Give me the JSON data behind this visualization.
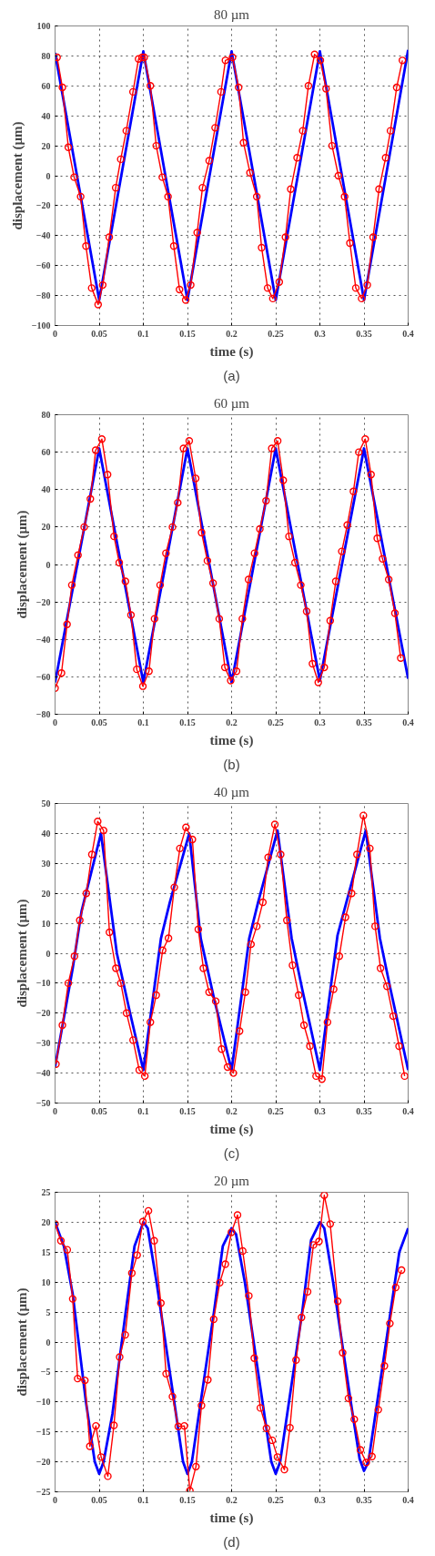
{
  "chart_data": [
    {
      "type": "line",
      "title": "80 µm",
      "xlabel": "time (s)",
      "ylabel": "displacement (µm)",
      "annotations": [
        "(a)"
      ],
      "xlim": [
        0,
        0.4
      ],
      "xticks": [
        0,
        0.05,
        0.1,
        0.15,
        0.2,
        0.25,
        0.3,
        0.35,
        0.4
      ],
      "ylim": [
        -100,
        100
      ],
      "yticks": [
        -100,
        -80,
        -60,
        -40,
        -20,
        0,
        20,
        40,
        60,
        80,
        100
      ],
      "grid": true,
      "line_style": "solid",
      "series": [
        {
          "color": "#0000ff",
          "x": [
            0,
            0.05,
            0.1,
            0.15,
            0.2,
            0.25,
            0.3,
            0.35,
            0.4
          ],
          "values": [
            82,
            -83,
            83,
            -83,
            83,
            -83,
            83,
            -83,
            84
          ]
        },
        {
          "color": "#ff0000",
          "marker": "circle",
          "x": [
            0.0023,
            0.0083,
            0.015,
            0.0216,
            0.029,
            0.035,
            0.0415,
            0.0488,
            0.054,
            0.0614,
            0.0687,
            0.0744,
            0.0807,
            0.0883,
            0.0946,
            0.0986,
            0.101,
            0.108,
            0.1146,
            0.1215,
            0.128,
            0.1345,
            0.141,
            0.148,
            0.1537,
            0.161,
            0.167,
            0.1746,
            0.1813,
            0.188,
            0.193,
            0.201,
            0.208,
            0.2135,
            0.2208,
            0.2285,
            0.234,
            0.2408,
            0.2467,
            0.254,
            0.261,
            0.267,
            0.2742,
            0.2806,
            0.287,
            0.294,
            0.3005,
            0.307,
            0.3138,
            0.321,
            0.328,
            0.334,
            0.3407,
            0.3473,
            0.3537,
            0.3603,
            0.367,
            0.3745,
            0.38,
            0.387,
            0.3935
          ],
          "values": [
            79,
            59,
            19,
            -1,
            -14,
            -47,
            -75,
            -86,
            -73,
            -41,
            -8,
            11,
            30,
            56,
            78,
            79,
            79,
            60,
            20,
            -1,
            -14,
            -47,
            -76,
            -83,
            -73,
            -38,
            -8,
            10,
            32,
            56,
            77,
            79,
            59,
            22,
            2,
            -14,
            -48,
            -75,
            -82,
            -71,
            -41,
            -9,
            12,
            30,
            60,
            81,
            77,
            58,
            20,
            0,
            -14,
            -45,
            -75,
            -82,
            -73,
            -41,
            -9,
            12,
            30,
            59,
            77
          ]
        }
      ]
    },
    {
      "type": "line",
      "title": "60 µm",
      "xlabel": "time (s)",
      "ylabel": "displacement (µm)",
      "annotations": [
        "(b)"
      ],
      "xlim": [
        0,
        0.4
      ],
      "xticks": [
        0,
        0.05,
        0.1,
        0.15,
        0.2,
        0.25,
        0.3,
        0.35,
        0.4
      ],
      "ylim": [
        -80,
        80
      ],
      "yticks": [
        -80,
        -60,
        -40,
        -20,
        0,
        20,
        40,
        60,
        80
      ],
      "grid": true,
      "line_style": "solid",
      "series": [
        {
          "color": "#0000ff",
          "x": [
            0,
            0.05,
            0.1,
            0.15,
            0.2,
            0.25,
            0.3,
            0.35,
            0.4
          ],
          "values": [
            -63,
            62,
            -63,
            62,
            -63,
            62,
            -62,
            62,
            -61
          ]
        },
        {
          "color": "#ff0000",
          "marker": "circle",
          "x": [
            0,
            0.0073,
            0.0136,
            0.019,
            0.026,
            0.033,
            0.04,
            0.046,
            0.053,
            0.0595,
            0.0668,
            0.0727,
            0.0797,
            0.086,
            0.0926,
            0.0995,
            0.1064,
            0.1127,
            0.119,
            0.1256,
            0.133,
            0.139,
            0.1455,
            0.152,
            0.1593,
            0.166,
            0.1726,
            0.179,
            0.186,
            0.1924,
            0.199,
            0.2056,
            0.2122,
            0.2192,
            0.226,
            0.232,
            0.239,
            0.2455,
            0.2522,
            0.2585,
            0.265,
            0.2718,
            0.2784,
            0.285,
            0.2916,
            0.2982,
            0.305,
            0.3117,
            0.318,
            0.3248,
            0.331,
            0.338,
            0.3441,
            0.3514,
            0.358,
            0.365,
            0.371,
            0.378,
            0.385,
            0.3916
          ],
          "values": [
            -66,
            -58,
            -32,
            -11,
            5,
            20,
            35,
            61,
            67,
            48,
            15,
            1,
            -9,
            -27,
            -56,
            -65,
            -57,
            -29,
            -11,
            6,
            20,
            33,
            62,
            66,
            46,
            17,
            2,
            -10,
            -29,
            -55,
            -62,
            -57,
            -29,
            -8,
            6,
            19,
            34,
            62,
            66,
            45,
            15,
            1,
            -11,
            -25,
            -53,
            -63,
            -55,
            -30,
            -9,
            7,
            21,
            39,
            60,
            67,
            48,
            14,
            3,
            -8,
            -26,
            -50
          ]
        }
      ]
    },
    {
      "type": "line",
      "title": "40 µm",
      "xlabel": "time (s)",
      "ylabel": "displacement (µm)",
      "annotations": [
        "(c)"
      ],
      "xlim": [
        0,
        0.4
      ],
      "xticks": [
        0,
        0.05,
        0.1,
        0.15,
        0.2,
        0.25,
        0.3,
        0.35,
        0.4
      ],
      "ylim": [
        -50,
        50
      ],
      "yticks": [
        -50,
        -40,
        -30,
        -20,
        -10,
        0,
        10,
        20,
        30,
        40,
        50
      ],
      "grid": true,
      "line_style": "solid",
      "series": [
        {
          "color": "#0000ff",
          "x": [
            0,
            0.02,
            0.03,
            0.052,
            0.07,
            0.085,
            0.1,
            0.12,
            0.13,
            0.152,
            0.165,
            0.18,
            0.2,
            0.22,
            0.23,
            0.252,
            0.268,
            0.28,
            0.3,
            0.32,
            0.33,
            0.352,
            0.368,
            0.38,
            0.4
          ],
          "values": [
            -38,
            -5,
            14,
            40,
            0,
            -20,
            -39,
            5,
            17,
            40,
            5,
            -15,
            -39,
            5,
            17,
            41,
            5,
            -12,
            -39,
            6,
            17,
            41,
            5,
            -12,
            -39
          ]
        },
        {
          "color": "#ff0000",
          "marker": "circle",
          "x": [
            0.001,
            0.0083,
            0.015,
            0.022,
            0.028,
            0.0354,
            0.0417,
            0.0483,
            0.055,
            0.0616,
            0.0689,
            0.0745,
            0.081,
            0.0884,
            0.0954,
            0.1017,
            0.108,
            0.1146,
            0.1219,
            0.1285,
            0.1351,
            0.1414,
            0.1483,
            0.1556,
            0.1623,
            0.168,
            0.1745,
            0.182,
            0.1887,
            0.1954,
            0.202,
            0.209,
            0.2156,
            0.222,
            0.2285,
            0.2354,
            0.2414,
            0.249,
            0.2556,
            0.2626,
            0.269,
            0.276,
            0.282,
            0.2887,
            0.2957,
            0.3023,
            0.3086,
            0.3156,
            0.322,
            0.329,
            0.336,
            0.342,
            0.3493,
            0.3566,
            0.3626,
            0.3687,
            0.376,
            0.383,
            0.3897,
            0.396
          ],
          "values": [
            -37,
            -24,
            -10,
            -1,
            11,
            20,
            33,
            44,
            41,
            7,
            -5,
            -10,
            -20,
            -29,
            -39,
            -41,
            -23,
            -14,
            1,
            5,
            22,
            35,
            42,
            38,
            8,
            -5,
            -13,
            -16,
            -32,
            -38,
            -40,
            -26,
            -13,
            3,
            9,
            17,
            32,
            43,
            33,
            11,
            -4,
            -14,
            -24,
            -31,
            -41,
            -42,
            -23,
            -12,
            -1,
            12,
            20,
            33,
            46,
            35,
            9,
            -5,
            -11,
            -21,
            -31,
            -41
          ]
        }
      ]
    },
    {
      "type": "line",
      "title": "20 µm",
      "xlabel": "time (s)",
      "ylabel": "displacement (µm)",
      "annotations": [
        "(d)"
      ],
      "xlim": [
        0,
        0.4
      ],
      "xticks": [
        0,
        0.05,
        0.1,
        0.15,
        0.2,
        0.25,
        0.3,
        0.35,
        0.4
      ],
      "ylim": [
        -25,
        25
      ],
      "yticks": [
        -25,
        -20,
        -15,
        -10,
        -5,
        0,
        5,
        10,
        15,
        20,
        25
      ],
      "grid": true,
      "line_style": "solid",
      "series": [
        {
          "color": "#0000ff",
          "x": [
            0,
            0.01,
            0.02,
            0.035,
            0.045,
            0.05,
            0.055,
            0.065,
            0.08,
            0.09,
            0.1,
            0.105,
            0.115,
            0.135,
            0.145,
            0.15,
            0.155,
            0.165,
            0.18,
            0.19,
            0.2,
            0.205,
            0.215,
            0.235,
            0.245,
            0.25,
            0.255,
            0.265,
            0.28,
            0.29,
            0.3,
            0.305,
            0.315,
            0.335,
            0.345,
            0.35,
            0.355,
            0.365,
            0.38,
            0.39,
            0.4
          ],
          "values": [
            20,
            16,
            8,
            -10,
            -20,
            -22,
            -20,
            -12,
            5,
            16,
            20,
            19,
            10,
            -10,
            -20,
            -22,
            -20,
            -10,
            5,
            16,
            19,
            18,
            10,
            -10,
            -20,
            -22,
            -20,
            -10,
            5,
            17,
            20,
            19,
            10,
            -10,
            -19.5,
            -21.5,
            -20,
            -10,
            5,
            15,
            19
          ]
        },
        {
          "color": "#ff0000",
          "marker": "circle",
          "x": [
            0,
            0.0066,
            0.0138,
            0.02,
            0.0256,
            0.0338,
            0.0394,
            0.0463,
            0.0522,
            0.0598,
            0.0667,
            0.0732,
            0.0795,
            0.087,
            0.093,
            0.0995,
            0.1058,
            0.1123,
            0.1199,
            0.1258,
            0.133,
            0.1396,
            0.1465,
            0.1527,
            0.1596,
            0.1659,
            0.1731,
            0.1797,
            0.1866,
            0.1929,
            0.1998,
            0.2067,
            0.2126,
            0.2195,
            0.2257,
            0.2326,
            0.2395,
            0.246,
            0.252,
            0.2598,
            0.2661,
            0.273,
            0.2792,
            0.2861,
            0.2927,
            0.299,
            0.305,
            0.3117,
            0.3202,
            0.3258,
            0.3324,
            0.339,
            0.3459,
            0.3525,
            0.359,
            0.3662,
            0.3731,
            0.3793,
            0.3859,
            0.3925
          ],
          "values": [
            19.7,
            16.9,
            15.4,
            7.2,
            -6.1,
            -6.4,
            -17.4,
            -14,
            -19.2,
            -22.4,
            -13.9,
            -2.5,
            1.2,
            11.5,
            14.5,
            20.1,
            21.9,
            16.9,
            6.5,
            -5.3,
            -9.1,
            -14.1,
            -14,
            -24.8,
            -20.8,
            -10.6,
            -6.3,
            3.8,
            9.9,
            13,
            18.3,
            21.2,
            15.2,
            7.7,
            -2.7,
            -11,
            -14.4,
            -16.4,
            -19.2,
            -21.3,
            -14.3,
            -3,
            4.1,
            8.4,
            16.2,
            16.8,
            24.5,
            19.7,
            6.8,
            -1.8,
            -9.4,
            -12.9,
            -18,
            -20.1,
            -19.1,
            -11.3,
            -4,
            3.1,
            9.1,
            12
          ]
        }
      ]
    }
  ]
}
